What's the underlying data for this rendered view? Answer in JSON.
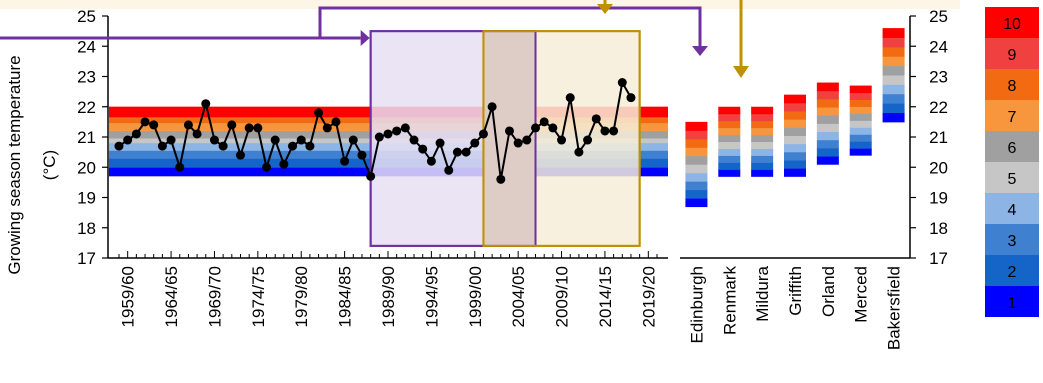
{
  "colors": {
    "band_colors": [
      "#0000ff",
      "#1565c8",
      "#3f80d0",
      "#8cb4e4",
      "#c6c6c6",
      "#a0a0a0",
      "#f7963c",
      "#f26b12",
      "#f04040",
      "#ff0000"
    ],
    "purple": "#7030a0",
    "purple_fill": "#e6dff2",
    "gold": "#bf9000",
    "gold_fill": "#f6edd9",
    "brown_overlap": "#dcc9c4",
    "header_strip": "#fdf5e6"
  },
  "chart_data": [
    {
      "type": "line",
      "ylabel": "Growing season temperature (°C)",
      "ylim": [
        17,
        25
      ],
      "yticks": [
        17,
        18,
        19,
        20,
        21,
        22,
        23,
        24,
        25
      ],
      "x_start": 1958,
      "x_end": 2020,
      "xtick_labels": [
        "1959/60",
        "1964/65",
        "1969/70",
        "1974/75",
        "1979/80",
        "1984/85",
        "1989/90",
        "1994/95",
        "1999/00",
        "2004/05",
        "2009/10",
        "2014/15",
        "2019/20"
      ],
      "xtick_years": [
        1959,
        1964,
        1969,
        1974,
        1979,
        1984,
        1989,
        1994,
        1999,
        2004,
        2009,
        2014,
        2019
      ],
      "series": [
        {
          "x": [
            1958,
            1959,
            1960,
            1961,
            1962,
            1963,
            1964,
            1965,
            1966,
            1967,
            1968,
            1969,
            1970,
            1971,
            1972,
            1973,
            1974,
            1975,
            1976,
            1977,
            1978,
            1979,
            1980,
            1981,
            1982,
            1983,
            1984,
            1985,
            1986,
            1987,
            1988,
            1989,
            1990,
            1991,
            1992,
            1993,
            1994,
            1995,
            1996,
            1997,
            1998,
            1999,
            2000,
            2001,
            2002,
            2003,
            2004,
            2005,
            2006,
            2007,
            2008,
            2009,
            2010,
            2011,
            2012,
            2013,
            2014,
            2015,
            2016,
            2017
          ],
          "values": [
            20.7,
            20.9,
            21.1,
            21.5,
            21.4,
            20.7,
            20.9,
            20.0,
            21.4,
            21.1,
            22.1,
            20.9,
            20.7,
            21.4,
            20.4,
            21.3,
            21.3,
            20.0,
            20.9,
            20.1,
            20.7,
            20.9,
            20.7,
            21.8,
            21.3,
            21.5,
            20.2,
            20.9,
            20.4,
            19.7,
            21.0,
            21.1,
            21.2,
            21.3,
            20.9,
            20.6,
            20.2,
            20.8,
            19.9,
            20.5,
            20.5,
            20.8,
            21.1,
            22.0,
            19.6,
            21.2,
            20.8,
            20.9,
            21.3,
            21.5,
            21.3,
            20.9,
            22.3,
            20.5,
            20.9,
            21.6,
            21.2,
            21.2,
            22.8,
            22.3
          ]
        }
      ],
      "color_band_bounds": [
        19.7,
        20.0,
        20.3,
        20.55,
        20.8,
        20.95,
        21.2,
        21.45,
        21.65,
        22.0
      ],
      "highlight_periods": [
        {
          "color": "purple",
          "x": [
            1987,
            2006
          ]
        },
        {
          "color": "gold",
          "x": [
            2000,
            2018
          ]
        }
      ]
    },
    {
      "type": "bar",
      "categories": [
        "Edinburgh",
        "Renmark",
        "Mildura",
        "Griffith",
        "Orland",
        "Merced",
        "Bakersfield"
      ],
      "ylim": [
        17,
        25
      ],
      "yticks": [
        17,
        18,
        19,
        20,
        21,
        22,
        23,
        24,
        25
      ],
      "ranges": [
        [
          18.7,
          21.5
        ],
        [
          19.7,
          22.0
        ],
        [
          19.7,
          22.0
        ],
        [
          19.7,
          22.4
        ],
        [
          20.1,
          22.8
        ],
        [
          20.4,
          22.7
        ],
        [
          21.5,
          24.6
        ]
      ]
    }
  ],
  "legend": {
    "labels": [
      "10",
      "9",
      "8",
      "7",
      "6",
      "5",
      "4",
      "3",
      "2",
      "1"
    ]
  }
}
